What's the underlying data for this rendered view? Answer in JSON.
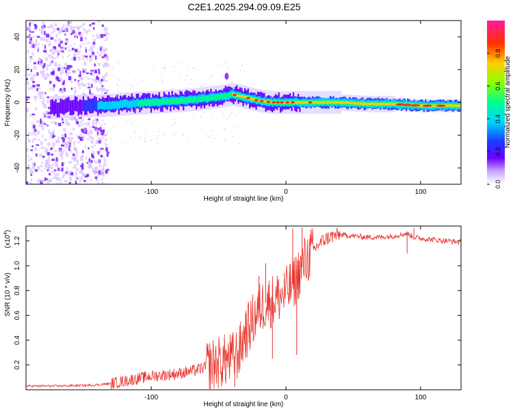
{
  "title": "C2E1.2025.294.09.09.E25",
  "chart_data": [
    {
      "type": "heatmap",
      "name": "spectrogram",
      "xlabel": "Height of straight line (km)",
      "ylabel": "Frequency (Hz)",
      "xlim": [
        -193,
        130
      ],
      "ylim": [
        -50,
        50
      ],
      "xticks": [
        -100,
        0,
        100
      ],
      "yticks": [
        -40,
        -20,
        0,
        20,
        40
      ],
      "ridge": {
        "x": [
          -190,
          -170,
          -150,
          -135,
          -120,
          -100,
          -80,
          -65,
          -55,
          -45,
          -40,
          -35,
          -30,
          -25,
          -20,
          -15,
          -10,
          -5,
          0,
          5,
          10,
          20,
          40,
          60,
          80,
          100,
          120,
          130
        ],
        "freq": [
          -3,
          -3,
          -2,
          -2,
          -1,
          0,
          1,
          2,
          3,
          4,
          5,
          4,
          3,
          2,
          1,
          0.5,
          0,
          0,
          0,
          0,
          0,
          0,
          0,
          -1,
          -1,
          -2,
          -2,
          -2
        ]
      },
      "colorbar": {
        "label": "Normalized spectral amplitude",
        "range": [
          0,
          1
        ],
        "ticks": [
          0.0,
          0.2,
          0.4,
          0.6,
          0.8
        ]
      }
    },
    {
      "type": "line",
      "name": "snr",
      "color": "#e8322b",
      "xlabel": "Height of straight line (km)",
      "ylabel": "SNR (10 * v/v)",
      "multiplier_label": "(x10",
      "multiplier_exp": "4",
      "multiplier_close": ")",
      "xlim": [
        -193,
        130
      ],
      "ylim": [
        0.0,
        1.32
      ],
      "xticks": [
        -100,
        0,
        100
      ],
      "yticks": [
        0.2,
        0.4,
        0.6,
        0.8,
        1.0,
        1.2
      ],
      "envelope": {
        "x": [
          -193,
          -170,
          -150,
          -140,
          -130,
          -120,
          -110,
          -100,
          -90,
          -80,
          -70,
          -60,
          -50,
          -40,
          -35,
          -30,
          -25,
          -20,
          -15,
          -10,
          -5,
          0,
          5,
          10,
          15,
          20,
          25,
          30,
          35,
          40,
          50,
          60,
          70,
          80,
          85,
          90,
          95,
          100,
          110,
          120,
          130
        ],
        "y": [
          0.03,
          0.03,
          0.035,
          0.04,
          0.05,
          0.07,
          0.09,
          0.11,
          0.12,
          0.13,
          0.15,
          0.18,
          0.22,
          0.25,
          0.3,
          0.45,
          0.55,
          0.65,
          0.7,
          0.72,
          0.75,
          0.78,
          0.85,
          0.95,
          1.05,
          1.12,
          1.18,
          1.22,
          1.24,
          1.25,
          1.24,
          1.23,
          1.23,
          1.24,
          1.25,
          1.26,
          1.23,
          1.22,
          1.21,
          1.2,
          1.19
        ]
      },
      "spikes": [
        {
          "x": -45,
          "y": 0.32
        },
        {
          "x": -38,
          "y": 0.02
        },
        {
          "x": -30,
          "y": 0.62
        },
        {
          "x": -20,
          "y": 0.92
        },
        {
          "x": -15,
          "y": 1.02
        },
        {
          "x": -10,
          "y": 0.25
        },
        {
          "x": 5,
          "y": 1.3
        },
        {
          "x": 8,
          "y": 0.28
        },
        {
          "x": 12,
          "y": 1.31
        },
        {
          "x": 90,
          "y": 1.1
        },
        {
          "x": 95,
          "y": 1.3
        }
      ]
    }
  ]
}
